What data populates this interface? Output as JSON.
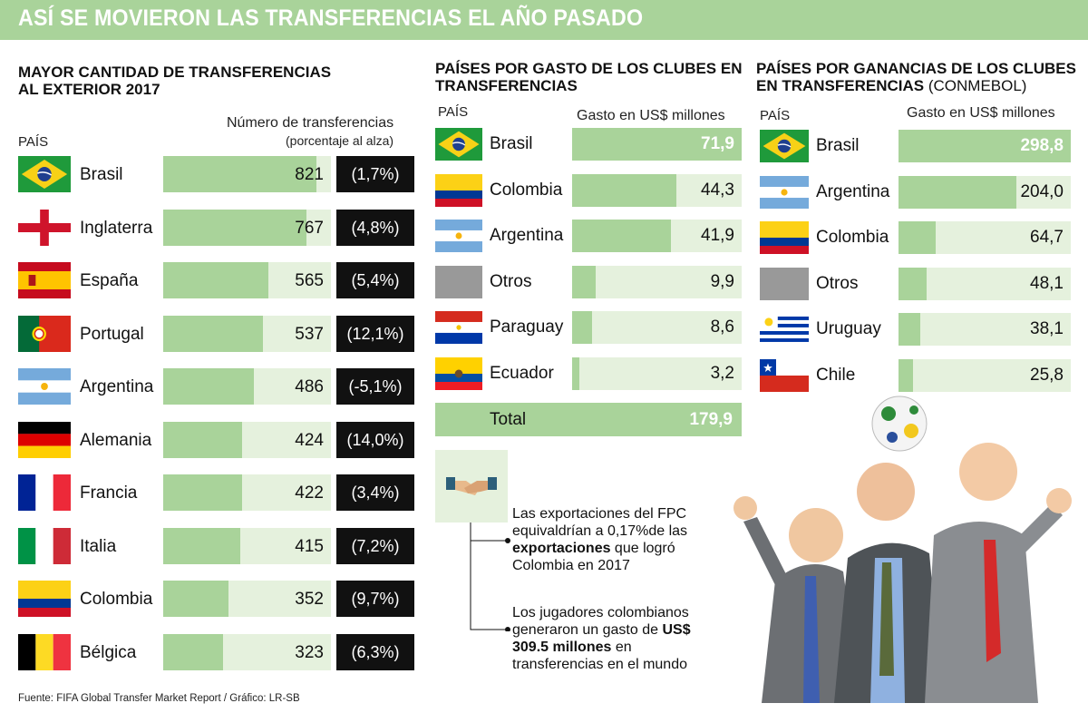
{
  "banner_title": "ASÍ SE MOVIERON LAS TRANSFERENCIAS EL AÑO PASADO",
  "colors": {
    "accent_green": "#a9d39a",
    "light_green": "#e5f1dd",
    "black": "#111111"
  },
  "source": "Fuente: FIFA Global Transfer Market Report / Gráfico: LR-SB",
  "chart_data": [
    {
      "type": "bar",
      "title": "MAYOR CANTIDAD DE TRANSFERENCIAS AL EXTERIOR 2017",
      "title_lines": [
        "MAYOR CANTIDAD DE TRANSFERENCIAS",
        "AL EXTERIOR 2017"
      ],
      "xlabel": "PAÍS",
      "ylabel": "Número de transferencias",
      "ylabel_sub": "(porcentaje al alza)",
      "categories": [
        "Brasil",
        "Inglaterra",
        "España",
        "Portugal",
        "Argentina",
        "Alemania",
        "Francia",
        "Italia",
        "Colombia",
        "Bélgica"
      ],
      "values": [
        821,
        767,
        565,
        537,
        486,
        424,
        422,
        415,
        352,
        323
      ],
      "labels": [
        "821",
        "767",
        "565",
        "537",
        "486",
        "424",
        "422",
        "415",
        "352",
        "323"
      ],
      "pct_labels": [
        "(1,7%)",
        "(4,8%)",
        "(5,4%)",
        "(12,1%)",
        "(-5,1%)",
        "(14,0%)",
        "(3,4%)",
        "(7,2%)",
        "(9,7%)",
        "(6,3%)"
      ],
      "flags": [
        "brazil-flag",
        "england-flag",
        "spain-flag",
        "portugal-flag",
        "argentina-flag",
        "germany-flag",
        "france-flag",
        "italy-flag",
        "colombia-flag",
        "belgium-flag"
      ],
      "xlim": [
        0,
        900
      ]
    },
    {
      "type": "bar",
      "title": "PAÍSES POR GASTO DE LOS CLUBES EN TRANSFERENCIAS",
      "title_lines": [
        "PAÍSES POR GASTO DE LOS CLUBES EN",
        "TRANSFERENCIAS"
      ],
      "xlabel": "PAÍS",
      "ylabel": "Gasto en US$ millones",
      "categories": [
        "Brasil",
        "Colombia",
        "Argentina",
        "Otros",
        "Paraguay",
        "Ecuador"
      ],
      "values": [
        71.9,
        44.3,
        41.9,
        9.9,
        8.6,
        3.2
      ],
      "labels": [
        "71,9",
        "44,3",
        "41,9",
        "9,9",
        "8,6",
        "3,2"
      ],
      "flags": [
        "brazil-flag",
        "colombia-flag",
        "argentina-flag",
        "others-placeholder",
        "paraguay-flag",
        "ecuador-flag"
      ],
      "total_label": "Total",
      "total_value": "179,9",
      "xlim": [
        0,
        71.9
      ]
    },
    {
      "type": "bar",
      "title": "PAÍSES POR GANANCIAS DE LOS CLUBES EN TRANSFERENCIAS (CONMEBOL)",
      "title_lines": [
        "PAÍSES POR GANANCIAS DE LOS CLUBES",
        "EN TRANSFERENCIAS"
      ],
      "title_suffix": " (CONMEBOL)",
      "xlabel": "PAÍS",
      "ylabel": "Gasto en US$ millones",
      "categories": [
        "Brasil",
        "Argentina",
        "Colombia",
        "Otros",
        "Uruguay",
        "Chile"
      ],
      "values": [
        298.8,
        204.0,
        64.7,
        48.1,
        38.1,
        25.8
      ],
      "labels": [
        "298,8",
        "204,0",
        "64,7",
        "48,1",
        "38,1",
        "25,8"
      ],
      "flags": [
        "brazil-flag",
        "argentina-flag",
        "colombia-flag",
        "others-placeholder",
        "uruguay-flag",
        "chile-flag"
      ],
      "xlim": [
        0,
        298.8
      ]
    }
  ],
  "notes": {
    "icon": "handshake-icon",
    "note1": {
      "prefix": "Las exportaciones del FPC equivaldrían a 0,17%de las ",
      "bold": "exportaciones",
      "suffix": " que logró Colombia en 2017"
    },
    "note2": {
      "prefix": "Los jugadores colombianos generaron un gasto de ",
      "bold": "US$ 309.5 millones",
      "suffix": " en transferencias en el mundo"
    }
  },
  "illustration": "businessmen-heading-soccer-ball"
}
